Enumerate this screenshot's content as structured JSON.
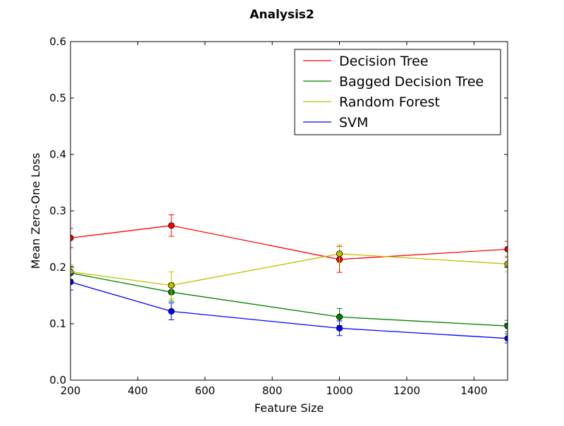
{
  "chart_data": {
    "type": "line",
    "title": "Analysis2",
    "xlabel": "Feature Size",
    "ylabel": "Mean Zero-One Loss",
    "xlim": [
      200,
      1500
    ],
    "ylim": [
      0.0,
      0.6
    ],
    "xticks": [
      200,
      400,
      600,
      800,
      1000,
      1200,
      1400
    ],
    "yticks": [
      0.0,
      0.1,
      0.2,
      0.3,
      0.4,
      0.5,
      0.6
    ],
    "xtick_labels": [
      "200",
      "400",
      "600",
      "800",
      "1000",
      "1200",
      "1400"
    ],
    "ytick_labels": [
      "0.0",
      "0.1",
      "0.2",
      "0.3",
      "0.4",
      "0.5",
      "0.6"
    ],
    "grid": false,
    "legend_position": "top-right",
    "x": [
      200,
      500,
      1000,
      1500
    ],
    "series": [
      {
        "name": "Decision Tree",
        "color": "#ff0000",
        "values": [
          0.252,
          0.274,
          0.214,
          0.232
        ],
        "errors": [
          0.017,
          0.019,
          0.023,
          0.014
        ]
      },
      {
        "name": "Bagged Decision Tree",
        "color": "#008000",
        "values": [
          0.19,
          0.156,
          0.112,
          0.096
        ],
        "errors": [
          0.012,
          0.016,
          0.015,
          0.01
        ]
      },
      {
        "name": "Random Forest",
        "color": "#bfbf00",
        "values": [
          0.192,
          0.168,
          0.224,
          0.206
        ],
        "errors": [
          0.013,
          0.024,
          0.016,
          0.014
        ]
      },
      {
        "name": "SVM",
        "color": "#0000ff",
        "values": [
          0.174,
          0.122,
          0.092,
          0.074
        ],
        "errors": [
          0.014,
          0.015,
          0.013,
          0.008
        ]
      }
    ]
  }
}
